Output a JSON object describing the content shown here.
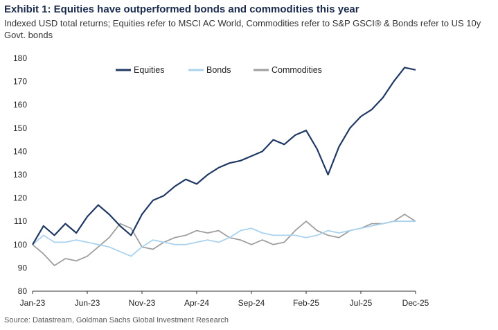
{
  "header": {
    "title": "Exhibit 1: Equities have outperformed bonds and commodities this year",
    "subtitle": "Indexed USD total returns; Equities refer to MSCI AC World, Commodities refer to S&P GSCI® & Bonds refer to US 10y Govt. bonds"
  },
  "footer": {
    "source": "Source: Datastream, Goldman Sachs Global Investment Research"
  },
  "chart_data": {
    "type": "line",
    "title": "Exhibit 1: Equities have outperformed bonds and commodities this year",
    "subtitle": "Indexed USD total returns; Equities refer to MSCI AC World, Commodities refer to S&P GSCI® & Bonds refer to US 10y Govt. bonds",
    "xlabel": "",
    "ylabel": "",
    "ylim": [
      80,
      180
    ],
    "yticks": [
      80,
      90,
      100,
      110,
      120,
      130,
      140,
      150,
      160,
      170,
      180
    ],
    "xticks": [
      "Jan-23",
      "Jun-23",
      "Nov-23",
      "Apr-24",
      "Sep-24",
      "Feb-25",
      "Jul-25",
      "Dec-25"
    ],
    "grid": false,
    "legend": "top-center",
    "x": [
      "2023-01",
      "2023-02",
      "2023-03",
      "2023-04",
      "2023-05",
      "2023-06",
      "2023-07",
      "2023-08",
      "2023-09",
      "2023-10",
      "2023-11",
      "2023-12",
      "2024-01",
      "2024-02",
      "2024-03",
      "2024-04",
      "2024-05",
      "2024-06",
      "2024-07",
      "2024-08",
      "2024-09",
      "2024-10",
      "2024-11",
      "2024-12",
      "2025-01",
      "2025-02",
      "2025-03",
      "2025-04",
      "2025-05",
      "2025-06",
      "2025-07",
      "2025-08",
      "2025-09",
      "2025-10",
      "2025-11",
      "2025-12"
    ],
    "series": [
      {
        "name": "Equities",
        "color": "#1f3864",
        "values": [
          100,
          108,
          104,
          109,
          105,
          112,
          117,
          113,
          108,
          104,
          113,
          119,
          121,
          125,
          128,
          126,
          130,
          133,
          135,
          136,
          138,
          140,
          145,
          143,
          147,
          149,
          141,
          130,
          142,
          150,
          155,
          158,
          163,
          170,
          176,
          175
        ]
      },
      {
        "name": "Bonds",
        "color": "#a9d2ee",
        "values": [
          100,
          104,
          101,
          101,
          102,
          101,
          100,
          99,
          97,
          95,
          99,
          102,
          101,
          100,
          100,
          101,
          102,
          101,
          103,
          106,
          107,
          105,
          104,
          104,
          104,
          103,
          104,
          106,
          105,
          106,
          107,
          108,
          109,
          110,
          110,
          110
        ]
      },
      {
        "name": "Commodities",
        "color": "#9e9e9e",
        "values": [
          100,
          96,
          91,
          94,
          93,
          95,
          99,
          103,
          109,
          107,
          99,
          98,
          101,
          103,
          104,
          106,
          105,
          106,
          103,
          102,
          100,
          102,
          100,
          101,
          106,
          110,
          106,
          104,
          103,
          106,
          107,
          109,
          109,
          110,
          113,
          110
        ]
      }
    ]
  }
}
